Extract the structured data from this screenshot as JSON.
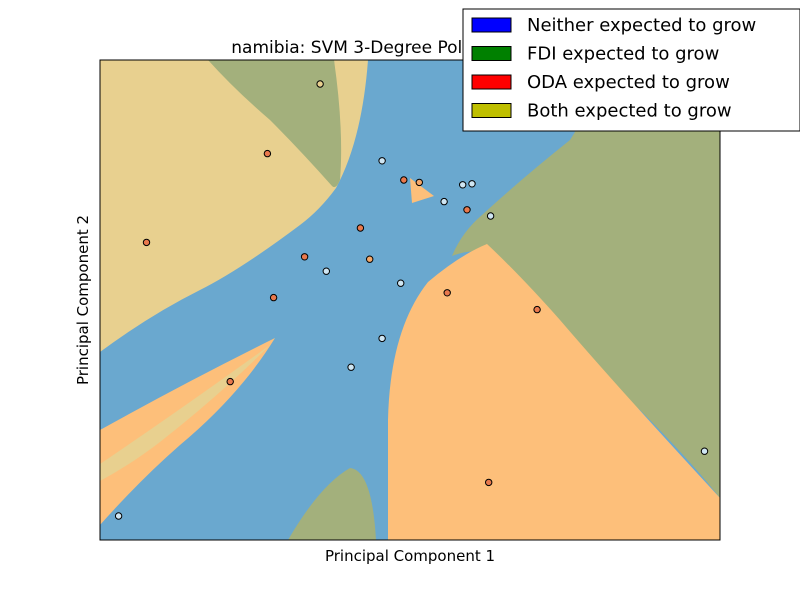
{
  "chart_data": {
    "type": "scatter",
    "title": "namibia: SVM 3-Degree Polynomial Kernel",
    "xlabel": "Principal Component 1",
    "ylabel": "Principal Component 2",
    "xlim": [
      0,
      100
    ],
    "ylim": [
      0,
      100
    ],
    "grid": false,
    "ticks_visible": false,
    "legend_placement": "top-right",
    "legend": [
      {
        "label": "Neither expected to grow",
        "color": "#0000ff"
      },
      {
        "label": "FDI expected to grow",
        "color": "#008000"
      },
      {
        "label": "ODA expected to grow",
        "color": "#ff0000"
      },
      {
        "label": "Both expected to grow",
        "color": "#bfbf00"
      }
    ],
    "region_colors": {
      "neither": "#6aa8cf",
      "fdi": "#a3b07c",
      "oda": "#fdbf7a",
      "both": "#e8d08f"
    },
    "point_colors": {
      "neither": "#cfe6f3",
      "oda": "#e9794d",
      "oda_light": "#f4a86a"
    },
    "points": [
      {
        "x": 35.5,
        "y": 95,
        "class": "both"
      },
      {
        "x": 27,
        "y": 80.5,
        "class": "oda"
      },
      {
        "x": 45.5,
        "y": 79,
        "class": "neither"
      },
      {
        "x": 49,
        "y": 75,
        "class": "oda"
      },
      {
        "x": 51.5,
        "y": 74.5,
        "class": "oda_light"
      },
      {
        "x": 58.5,
        "y": 74,
        "class": "neither"
      },
      {
        "x": 60,
        "y": 74.2,
        "class": "neither"
      },
      {
        "x": 55.5,
        "y": 70.5,
        "class": "neither"
      },
      {
        "x": 59.2,
        "y": 68.8,
        "class": "oda"
      },
      {
        "x": 63,
        "y": 67.5,
        "class": "neither"
      },
      {
        "x": 42,
        "y": 65,
        "class": "oda"
      },
      {
        "x": 7.5,
        "y": 62,
        "class": "oda"
      },
      {
        "x": 33,
        "y": 59,
        "class": "oda"
      },
      {
        "x": 43.5,
        "y": 58.5,
        "class": "oda_light"
      },
      {
        "x": 36.5,
        "y": 56,
        "class": "neither"
      },
      {
        "x": 48.5,
        "y": 53.5,
        "class": "neither"
      },
      {
        "x": 56,
        "y": 51.5,
        "class": "oda"
      },
      {
        "x": 28,
        "y": 50.5,
        "class": "oda"
      },
      {
        "x": 70.5,
        "y": 48,
        "class": "oda"
      },
      {
        "x": 45.5,
        "y": 42,
        "class": "neither"
      },
      {
        "x": 40.5,
        "y": 36,
        "class": "neither"
      },
      {
        "x": 21,
        "y": 33,
        "class": "oda"
      },
      {
        "x": 97.5,
        "y": 18.5,
        "class": "neither"
      },
      {
        "x": 62.7,
        "y": 12,
        "class": "oda"
      },
      {
        "x": 3,
        "y": 5,
        "class": "neither"
      }
    ]
  }
}
